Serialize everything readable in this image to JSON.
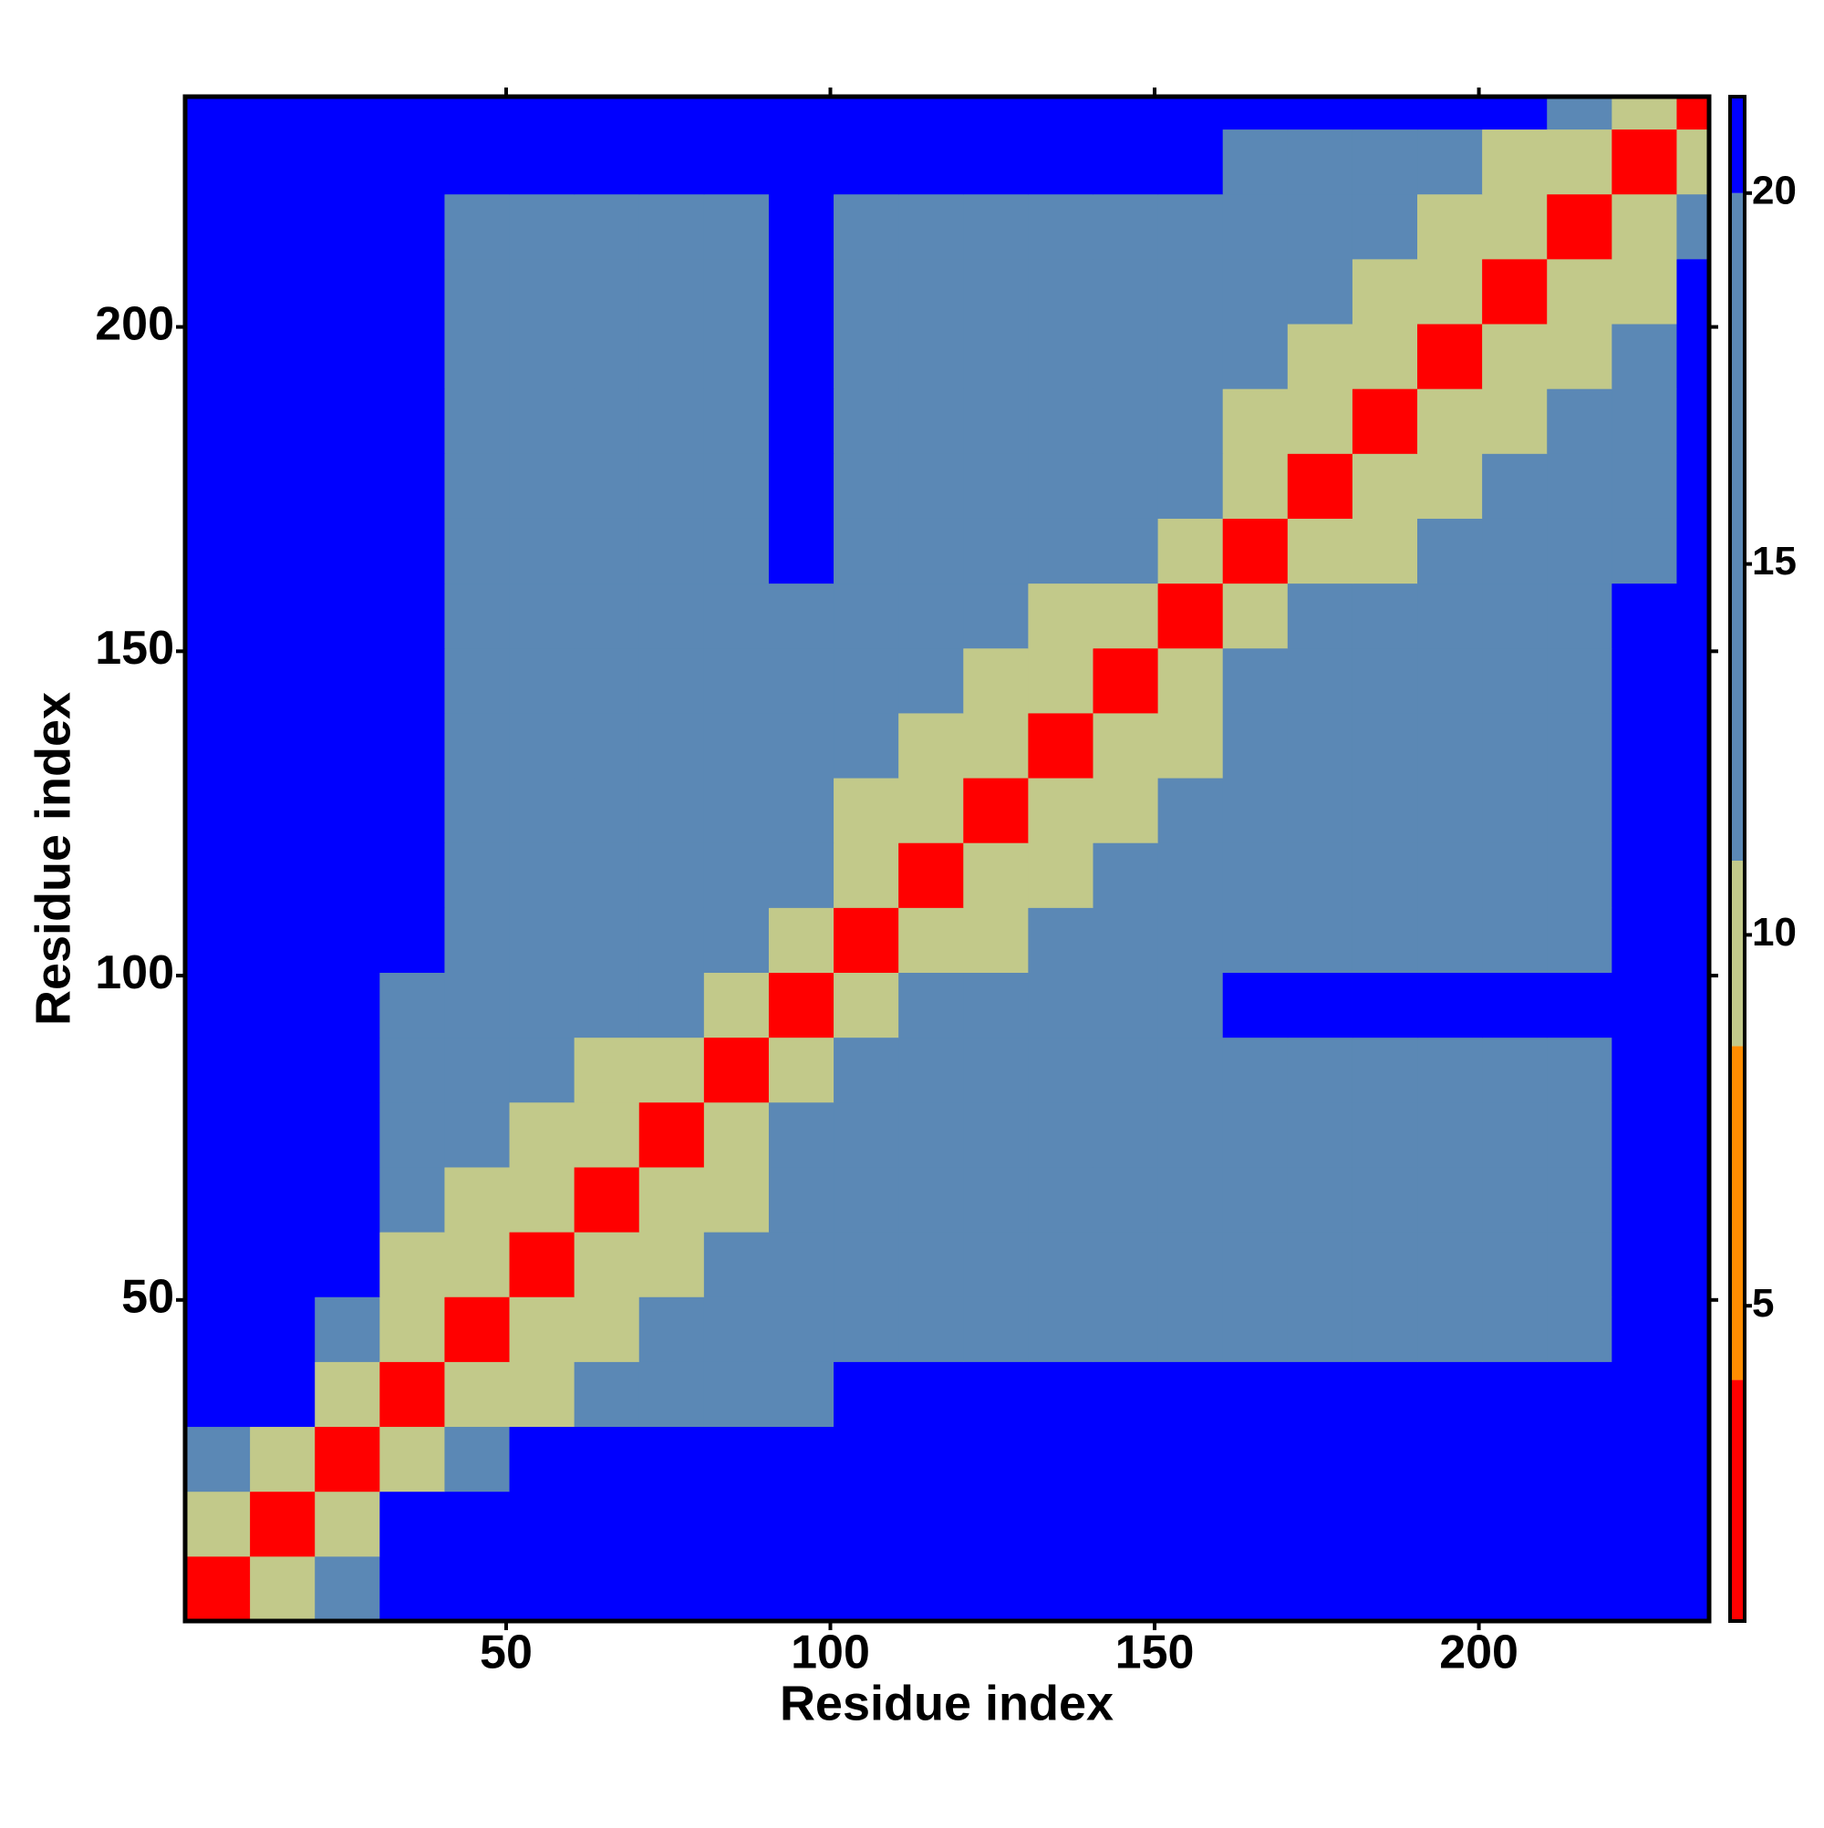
{
  "chart_data": {
    "type": "heatmap",
    "x_label": "Residue index",
    "y_label": "Residue index",
    "xlim": [
      0.5,
      235.5
    ],
    "ylim": [
      0.5,
      235.5
    ],
    "xticks": [
      50,
      100,
      150,
      200
    ],
    "yticks": [
      50,
      100,
      150,
      200
    ],
    "xbins": [
      0.5,
      10.5,
      20.5,
      30.5,
      40.5,
      50.5,
      60.5,
      70.5,
      80.5,
      90.5,
      100.5,
      110.5,
      120.5,
      130.5,
      140.5,
      150.5,
      160.5,
      170.5,
      180.5,
      190.5,
      200.5,
      210.5,
      220.5,
      230.5,
      235.5
    ],
    "ybins": [
      0.5,
      10.5,
      20.5,
      30.5,
      40.5,
      50.5,
      60.5,
      70.5,
      80.5,
      90.5,
      100.5,
      110.5,
      120.5,
      130.5,
      140.5,
      150.5,
      160.5,
      170.5,
      180.5,
      190.5,
      200.5,
      210.5,
      220.5,
      230.5,
      235.5
    ],
    "z": [
      [
        3.8,
        9,
        12,
        25,
        25,
        25,
        25,
        25,
        25,
        25,
        25,
        25,
        25,
        25,
        25,
        25,
        25,
        25,
        25,
        25,
        25,
        25,
        25,
        25
      ],
      [
        9,
        3.8,
        9,
        22,
        25,
        25,
        25,
        25,
        25,
        25,
        25,
        25,
        25,
        25,
        25,
        25,
        25,
        25,
        25,
        25,
        25,
        25,
        25,
        25
      ],
      [
        12,
        9,
        3.8,
        9,
        16,
        25,
        25,
        25,
        25,
        25,
        25,
        25,
        25,
        25,
        25,
        25,
        25,
        25,
        25,
        25,
        25,
        25,
        25,
        25
      ],
      [
        25,
        22,
        9,
        3.8,
        9,
        10.5,
        13,
        13,
        13,
        14,
        22,
        22,
        22,
        22,
        22,
        22,
        22,
        22,
        22,
        22,
        22,
        22,
        22,
        25
      ],
      [
        25,
        25,
        16,
        9,
        3.8,
        9,
        10.5,
        13,
        13,
        14,
        18,
        18,
        18,
        18,
        18,
        18,
        19,
        19,
        19,
        19,
        19,
        19,
        22,
        25
      ],
      [
        25,
        25,
        25,
        10.5,
        9,
        3.8,
        9,
        10.5,
        13,
        14,
        18,
        18,
        18,
        18,
        18,
        18,
        19,
        19,
        19,
        19,
        19,
        19,
        22,
        25
      ],
      [
        25,
        25,
        25,
        13,
        10.5,
        9,
        3.8,
        9,
        10.5,
        14,
        18,
        18,
        18,
        18,
        18,
        18,
        19,
        19,
        19,
        19,
        19,
        19,
        22,
        25
      ],
      [
        25,
        25,
        25,
        13,
        13,
        10.5,
        9,
        3.8,
        9,
        14,
        18,
        18,
        18,
        18,
        18,
        18,
        19,
        19,
        19,
        19,
        19,
        19,
        22,
        25
      ],
      [
        25,
        25,
        25,
        13,
        13,
        13,
        10.5,
        9,
        3.8,
        9,
        14,
        18,
        18,
        18,
        18,
        18,
        19,
        19,
        19,
        19,
        19,
        19,
        22,
        25
      ],
      [
        25,
        25,
        25,
        14,
        14,
        14,
        14,
        14,
        9,
        3.8,
        9,
        14,
        14,
        14,
        14,
        14,
        20.5,
        20.5,
        20.5,
        20.5,
        20.5,
        20.5,
        20.5,
        25
      ],
      [
        25,
        25,
        25,
        22,
        18,
        18,
        18,
        18,
        14,
        9,
        3.8,
        9,
        10.5,
        13,
        13,
        13,
        17,
        17,
        17,
        17,
        17,
        17,
        22,
        25
      ],
      [
        25,
        25,
        25,
        22,
        18,
        18,
        18,
        18,
        18,
        14,
        9,
        3.8,
        9,
        10.5,
        13,
        13,
        17,
        17,
        17,
        17,
        17,
        17,
        22,
        25
      ],
      [
        25,
        25,
        25,
        22,
        18,
        18,
        18,
        18,
        18,
        14,
        10.5,
        9,
        3.8,
        9,
        10.5,
        13,
        17,
        17,
        17,
        17,
        17,
        17,
        22,
        25
      ],
      [
        25,
        25,
        25,
        22,
        18,
        18,
        18,
        18,
        18,
        14,
        13,
        10.5,
        9,
        3.8,
        9,
        10.5,
        17,
        17,
        17,
        17,
        17,
        17,
        22,
        25
      ],
      [
        25,
        25,
        25,
        22,
        18,
        18,
        18,
        18,
        18,
        14,
        13,
        13,
        10.5,
        9,
        3.8,
        9,
        15,
        17,
        17,
        17,
        17,
        17,
        22,
        25
      ],
      [
        25,
        25,
        25,
        22,
        18,
        18,
        18,
        18,
        18,
        14,
        13,
        13,
        13,
        10.5,
        9,
        3.8,
        9,
        15,
        17,
        17,
        17,
        17,
        22,
        25
      ],
      [
        25,
        25,
        25,
        22,
        19,
        19,
        19,
        19,
        19,
        20.5,
        17,
        17,
        17,
        17,
        15,
        9,
        3.8,
        9,
        10.5,
        13,
        13,
        13,
        13,
        22
      ],
      [
        25,
        25,
        25,
        22,
        19,
        19,
        19,
        19,
        19,
        20.5,
        17,
        17,
        17,
        17,
        17,
        15,
        9,
        3.8,
        9,
        10.5,
        13,
        13,
        13,
        22
      ],
      [
        25,
        25,
        25,
        22,
        19,
        19,
        19,
        19,
        19,
        20.5,
        17,
        17,
        17,
        17,
        17,
        17,
        10.5,
        9,
        3.8,
        9,
        10.5,
        13,
        13,
        22
      ],
      [
        25,
        25,
        25,
        22,
        19,
        19,
        19,
        19,
        19,
        20.5,
        17,
        17,
        17,
        17,
        17,
        17,
        13,
        10.5,
        9,
        3.8,
        9,
        10.5,
        13,
        22
      ],
      [
        25,
        25,
        25,
        22,
        19,
        19,
        19,
        19,
        19,
        20.5,
        17,
        17,
        17,
        17,
        17,
        17,
        13,
        13,
        10.5,
        9,
        3.8,
        9,
        10.5,
        22
      ],
      [
        25,
        25,
        25,
        22,
        19,
        19,
        19,
        19,
        19,
        20.5,
        17,
        17,
        17,
        17,
        17,
        17,
        13,
        13,
        13,
        10.5,
        9,
        3.8,
        9,
        14
      ],
      [
        25,
        25,
        25,
        22,
        22,
        22,
        22,
        22,
        22,
        20.5,
        22,
        22,
        22,
        22,
        22,
        22,
        13,
        13,
        13,
        13,
        10.5,
        9,
        3.8,
        9
      ],
      [
        25,
        25,
        25,
        25,
        25,
        25,
        25,
        25,
        25,
        25,
        25,
        25,
        25,
        25,
        25,
        25,
        22,
        22,
        22,
        22,
        22,
        14,
        9,
        3.8
      ]
    ],
    "colorbar": {
      "clim": [
        0.75,
        21.3
      ],
      "ticks": [
        5,
        10,
        15,
        20
      ],
      "levels": [
        0.75,
        4,
        8.5,
        11,
        20,
        21.3
      ],
      "colors": [
        "#ff0000",
        "#ff8c00",
        "#c2c98a",
        "#5b88b5",
        "#0000ff"
      ]
    }
  }
}
